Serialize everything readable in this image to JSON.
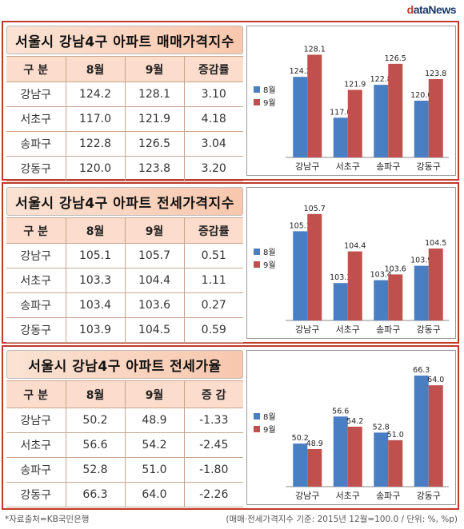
{
  "logo": "dataNews",
  "colors": {
    "aug": "#4a7ec2",
    "sep": "#c0504d"
  },
  "panels": [
    {
      "title": "서울시 강남4구 아파트 매매가격지수",
      "headers": [
        "구 분",
        "8월",
        "9월",
        "증감률"
      ],
      "rows": [
        [
          "강남구",
          "124.2",
          "128.1",
          "3.10"
        ],
        [
          "서초구",
          "117.0",
          "121.9",
          "4.18"
        ],
        [
          "송파구",
          "122.8",
          "126.5",
          "3.04"
        ],
        [
          "강동구",
          "120.0",
          "123.8",
          "3.20"
        ]
      ]
    },
    {
      "title": "서울시 강남4구 아파트 전세가격지수",
      "headers": [
        "구 분",
        "8월",
        "9월",
        "증감률"
      ],
      "rows": [
        [
          "강남구",
          "105.1",
          "105.7",
          "0.51"
        ],
        [
          "서초구",
          "103.3",
          "104.4",
          "1.11"
        ],
        [
          "송파구",
          "103.4",
          "103.6",
          "0.27"
        ],
        [
          "강동구",
          "103.9",
          "104.5",
          "0.59"
        ]
      ]
    },
    {
      "title": "서울시 강남4구 아파트 전세가율",
      "headers": [
        "구 분",
        "8월",
        "9월",
        "증 감"
      ],
      "rows": [
        [
          "강남구",
          "50.2",
          "48.9",
          "-1.33"
        ],
        [
          "서초구",
          "56.6",
          "54.2",
          "-2.45"
        ],
        [
          "송파구",
          "52.8",
          "51.0",
          "-1.80"
        ],
        [
          "강동구",
          "66.3",
          "64.0",
          "-2.26"
        ]
      ]
    }
  ],
  "chart_data": [
    {
      "type": "bar",
      "categories": [
        "강남구",
        "서초구",
        "송파구",
        "강동구"
      ],
      "series": [
        {
          "name": "8월",
          "values": [
            124.2,
            117.0,
            122.8,
            120.0
          ]
        },
        {
          "name": "9월",
          "values": [
            128.1,
            121.9,
            126.5,
            123.8
          ]
        }
      ],
      "ylim": [
        110,
        130
      ],
      "legend": "left"
    },
    {
      "type": "bar",
      "categories": [
        "강남구",
        "서초구",
        "송파구",
        "강동구"
      ],
      "series": [
        {
          "name": "8월",
          "values": [
            105.1,
            103.3,
            103.4,
            103.9
          ]
        },
        {
          "name": "9월",
          "values": [
            105.7,
            104.4,
            103.6,
            104.5
          ]
        }
      ],
      "ylim": [
        102,
        106
      ],
      "legend": "left"
    },
    {
      "type": "bar",
      "categories": [
        "강남구",
        "서초구",
        "송파구",
        "강동구"
      ],
      "series": [
        {
          "name": "8월",
          "values": [
            50.2,
            56.6,
            52.8,
            66.3
          ]
        },
        {
          "name": "9월",
          "values": [
            48.9,
            54.2,
            51.0,
            64.0
          ]
        }
      ],
      "ylim": [
        40,
        68
      ],
      "legend": "left"
    }
  ],
  "footer": {
    "source": "*자료출처=KB국민은행",
    "note": "(매매·전세가격지수 기준: 2015년 12월=100.0 / 단위: %, %p)"
  }
}
